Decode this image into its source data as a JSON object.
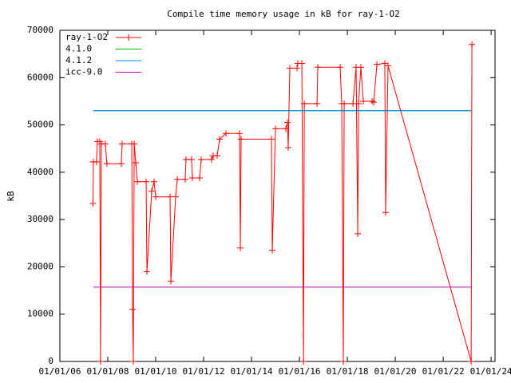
{
  "chart_data": {
    "type": "line",
    "title": "Compile time memory usage in kB for ray-1-O2",
    "y_label": "kB",
    "xlim": [
      "2006-01-01",
      "2024-03-01"
    ],
    "xticks": [
      {
        "value": "2006-01-01",
        "label": "01/01/06"
      },
      {
        "value": "2008-01-01",
        "label": "01/01/08"
      },
      {
        "value": "2010-01-01",
        "label": "01/01/10"
      },
      {
        "value": "2012-01-01",
        "label": "01/01/12"
      },
      {
        "value": "2014-01-01",
        "label": "01/01/14"
      },
      {
        "value": "2016-01-01",
        "label": "01/01/16"
      },
      {
        "value": "2018-01-01",
        "label": "01/01/18"
      },
      {
        "value": "2020-01-01",
        "label": "01/01/20"
      },
      {
        "value": "2022-01-01",
        "label": "01/01/22"
      },
      {
        "value": "2024-01-01",
        "label": "01/01/24"
      }
    ],
    "ylim": [
      0,
      70000
    ],
    "yticks": [
      0,
      10000,
      20000,
      30000,
      40000,
      50000,
      60000,
      70000
    ],
    "legend": "top-left",
    "series": [
      {
        "name": "ray-1-O2",
        "color": "#ff0000",
        "markers": true,
        "x": [
          "2007-05-20",
          "2007-05-26",
          "2007-07-14",
          "2007-07-26",
          "2007-09-01",
          "2007-09-13",
          "2007-09-25",
          "2007-11-25",
          "2007-12-19",
          "2008-07-26",
          "2008-08-07",
          "2009-01-01",
          "2009-01-13",
          "2009-01-25",
          "2009-02-07",
          "2009-03-03",
          "2009-03-27",
          "2009-08-08",
          "2009-08-20",
          "2009-11-01",
          "2009-12-07",
          "2010-01-01",
          "2010-08-08",
          "2010-08-20",
          "2010-11-01",
          "2010-11-25",
          "2011-03-27",
          "2011-04-08",
          "2011-07-02",
          "2011-07-14",
          "2011-11-01",
          "2011-11-25",
          "2012-05-01",
          "2012-05-26",
          "2012-07-26",
          "2012-09-01",
          "2012-12-07",
          "2013-07-02",
          "2013-07-14",
          "2013-07-26",
          "2014-11-01",
          "2014-11-13",
          "2015-01-01",
          "2015-06-08",
          "2015-07-02",
          "2015-07-14",
          "2015-08-08",
          "2015-11-25",
          "2015-12-07",
          "2016-02-07",
          "2016-03-03",
          "2016-03-15",
          "2016-09-25",
          "2016-10-07",
          "2017-09-13",
          "2017-10-07",
          "2017-10-31",
          "2017-11-13",
          "2018-03-27",
          "2018-05-14",
          "2018-06-08",
          "2018-06-20",
          "2018-07-26",
          "2018-09-01",
          "2019-01-13",
          "2019-02-07",
          "2019-03-27",
          "2019-07-26",
          "2019-08-07",
          "2019-09-13",
          "2023-03-03",
          "2023-03-15"
        ],
        "values": [
          33400,
          42200,
          42200,
          46500,
          46500,
          0,
          46000,
          46000,
          41800,
          41800,
          46000,
          46000,
          11000,
          0,
          46000,
          42000,
          38000,
          38000,
          19000,
          36000,
          38000,
          34800,
          34800,
          17000,
          34800,
          38500,
          38500,
          42700,
          42700,
          38800,
          38800,
          42700,
          42700,
          43500,
          43500,
          47000,
          48200,
          48200,
          24000,
          47000,
          47000,
          23500,
          49200,
          49200,
          50500,
          45200,
          62000,
          62000,
          63000,
          63000,
          0,
          54500,
          54500,
          62200,
          62200,
          54500,
          0,
          54500,
          54500,
          62200,
          27000,
          54500,
          62200,
          55000,
          55000,
          54800,
          62800,
          63000,
          31500,
          62500,
          0,
          67000
        ]
      },
      {
        "name": "4.1.0",
        "color": "#00c000",
        "markers": false,
        "x": [
          "2007-05-26",
          "2023-03-03"
        ],
        "values": [
          53000,
          53000
        ]
      },
      {
        "name": "4.1.2",
        "color": "#0080ff",
        "markers": false,
        "x": [
          "2007-05-26",
          "2023-03-03"
        ],
        "values": [
          53000,
          53000
        ]
      },
      {
        "name": "icc-9.0",
        "color": "#c000c0",
        "markers": false,
        "x": [
          "2007-05-26",
          "2023-03-03"
        ],
        "values": [
          15700,
          15700
        ]
      }
    ]
  }
}
